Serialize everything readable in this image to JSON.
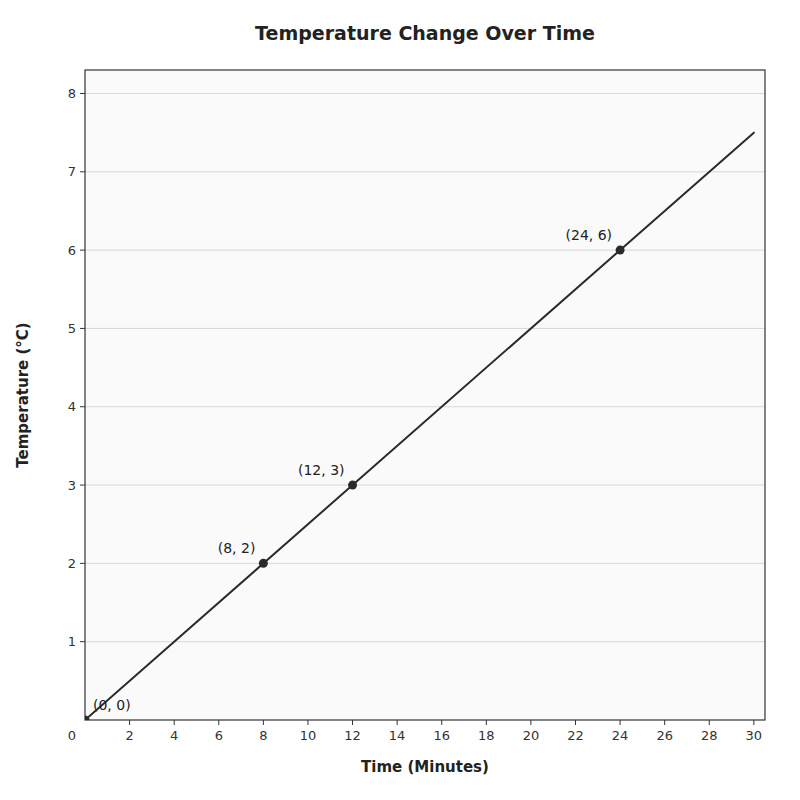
{
  "chart_data": {
    "type": "line",
    "title": "Temperature Change Over Time",
    "x_label": "Time (Minutes)",
    "y_label": "Temperature (°C)",
    "series": [
      {
        "type": "line",
        "x": [
          0,
          30
        ],
        "values": [
          0,
          7.5
        ],
        "color": "#2a2a2a",
        "line_style": "solid"
      },
      {
        "type": "scatter",
        "x": [
          0,
          8,
          12,
          24
        ],
        "values": [
          0,
          2,
          3,
          6
        ],
        "color": "#2a2a2a",
        "marker": "circle"
      }
    ],
    "annotations": [
      {
        "text": "(0, 0)",
        "x": 0,
        "y": 0
      },
      {
        "text": "(8, 2)",
        "x": 8,
        "y": 2
      },
      {
        "text": "(12, 3)",
        "x": 12,
        "y": 3
      },
      {
        "text": "(24, 6)",
        "x": 24,
        "y": 6
      }
    ],
    "origin_label": "0",
    "xlim": [
      0,
      30.5
    ],
    "ylim": [
      0,
      8.3
    ],
    "xticks": [
      2,
      4,
      6,
      8,
      10,
      12,
      14,
      16,
      18,
      20,
      22,
      24,
      26,
      28,
      30
    ],
    "yticks": [
      1,
      2,
      3,
      4,
      5,
      6,
      7,
      8
    ],
    "grid": "y"
  }
}
